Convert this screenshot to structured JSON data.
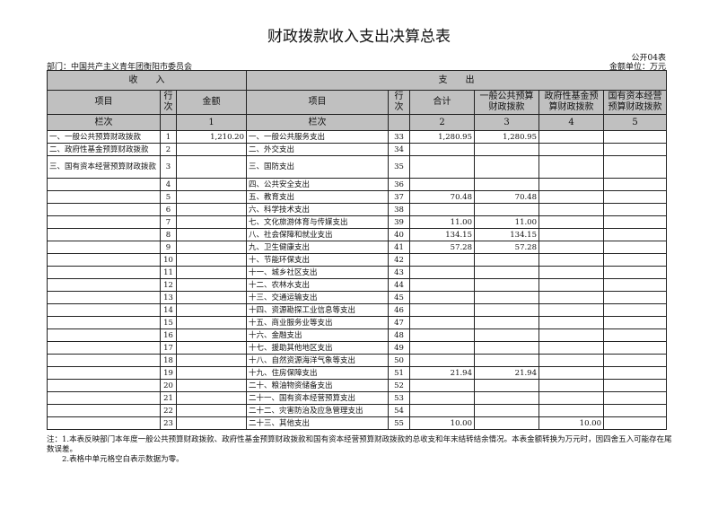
{
  "title": "财政拨款收入支出决算总表",
  "form_code": "公开04表",
  "department": "部门：中国共产主义青年团衡阳市委员会",
  "unit": "金额单位：万元",
  "headers": {
    "income": "收　　入",
    "expense": "支　　出",
    "item": "项目",
    "line": "行次",
    "amount": "金额",
    "total": "合计",
    "general": "一般公共预算财政拨款",
    "fund": "政府性基金预算财政拨款",
    "state": "国有资本经营预算财政拨款",
    "col_label": "栏次",
    "col1": "1",
    "col2": "2",
    "col3": "3",
    "col4": "4",
    "col5": "5"
  },
  "rows": [
    {
      "in_item": "一、一般公共预算财政拨款",
      "in_line": "1",
      "in_amount": "1,210.20",
      "ex_item": "一、一般公共服务支出",
      "ex_line": "33",
      "total": "1,280.95",
      "general": "1,280.95",
      "fund": "",
      "state": ""
    },
    {
      "in_item": "二、政府性基金预算财政拨款",
      "in_line": "2",
      "in_amount": "",
      "ex_item": "二、外交支出",
      "ex_line": "34",
      "total": "",
      "general": "",
      "fund": "",
      "state": ""
    },
    {
      "in_item": "三、国有资本经营预算财政拨款",
      "in_line": "3",
      "in_amount": "",
      "ex_item": "三、国防支出",
      "ex_line": "35",
      "total": "",
      "general": "",
      "fund": "",
      "state": ""
    },
    {
      "in_item": "",
      "in_line": "4",
      "in_amount": "",
      "ex_item": "四、公共安全支出",
      "ex_line": "36",
      "total": "",
      "general": "",
      "fund": "",
      "state": ""
    },
    {
      "in_item": "",
      "in_line": "5",
      "in_amount": "",
      "ex_item": "五、教育支出",
      "ex_line": "37",
      "total": "70.48",
      "general": "70.48",
      "fund": "",
      "state": ""
    },
    {
      "in_item": "",
      "in_line": "6",
      "in_amount": "",
      "ex_item": "六、科学技术支出",
      "ex_line": "38",
      "total": "",
      "general": "",
      "fund": "",
      "state": ""
    },
    {
      "in_item": "",
      "in_line": "7",
      "in_amount": "",
      "ex_item": "七、文化旅游体育与传媒支出",
      "ex_line": "39",
      "total": "11.00",
      "general": "11.00",
      "fund": "",
      "state": ""
    },
    {
      "in_item": "",
      "in_line": "8",
      "in_amount": "",
      "ex_item": "八、社会保障和就业支出",
      "ex_line": "40",
      "total": "134.15",
      "general": "134.15",
      "fund": "",
      "state": ""
    },
    {
      "in_item": "",
      "in_line": "9",
      "in_amount": "",
      "ex_item": "九、卫生健康支出",
      "ex_line": "41",
      "total": "57.28",
      "general": "57.28",
      "fund": "",
      "state": ""
    },
    {
      "in_item": "",
      "in_line": "10",
      "in_amount": "",
      "ex_item": "十、节能环保支出",
      "ex_line": "42",
      "total": "",
      "general": "",
      "fund": "",
      "state": ""
    },
    {
      "in_item": "",
      "in_line": "11",
      "in_amount": "",
      "ex_item": "十一、城乡社区支出",
      "ex_line": "43",
      "total": "",
      "general": "",
      "fund": "",
      "state": ""
    },
    {
      "in_item": "",
      "in_line": "12",
      "in_amount": "",
      "ex_item": "十二、农林水支出",
      "ex_line": "44",
      "total": "",
      "general": "",
      "fund": "",
      "state": ""
    },
    {
      "in_item": "",
      "in_line": "13",
      "in_amount": "",
      "ex_item": "十三、交通运输支出",
      "ex_line": "45",
      "total": "",
      "general": "",
      "fund": "",
      "state": ""
    },
    {
      "in_item": "",
      "in_line": "14",
      "in_amount": "",
      "ex_item": "十四、资源勘探工业信息等支出",
      "ex_line": "46",
      "total": "",
      "general": "",
      "fund": "",
      "state": ""
    },
    {
      "in_item": "",
      "in_line": "15",
      "in_amount": "",
      "ex_item": "十五、商业服务业等支出",
      "ex_line": "47",
      "total": "",
      "general": "",
      "fund": "",
      "state": ""
    },
    {
      "in_item": "",
      "in_line": "16",
      "in_amount": "",
      "ex_item": "十六、金融支出",
      "ex_line": "48",
      "total": "",
      "general": "",
      "fund": "",
      "state": ""
    },
    {
      "in_item": "",
      "in_line": "17",
      "in_amount": "",
      "ex_item": "十七、援助其他地区支出",
      "ex_line": "49",
      "total": "",
      "general": "",
      "fund": "",
      "state": ""
    },
    {
      "in_item": "",
      "in_line": "18",
      "in_amount": "",
      "ex_item": "十八、自然资源海洋气象等支出",
      "ex_line": "50",
      "total": "",
      "general": "",
      "fund": "",
      "state": ""
    },
    {
      "in_item": "",
      "in_line": "19",
      "in_amount": "",
      "ex_item": "十九、住房保障支出",
      "ex_line": "51",
      "total": "21.94",
      "general": "21.94",
      "fund": "",
      "state": ""
    },
    {
      "in_item": "",
      "in_line": "20",
      "in_amount": "",
      "ex_item": "二十、粮油物资储备支出",
      "ex_line": "52",
      "total": "",
      "general": "",
      "fund": "",
      "state": ""
    },
    {
      "in_item": "",
      "in_line": "21",
      "in_amount": "",
      "ex_item": "二十一、国有资本经营预算支出",
      "ex_line": "53",
      "total": "",
      "general": "",
      "fund": "",
      "state": ""
    },
    {
      "in_item": "",
      "in_line": "22",
      "in_amount": "",
      "ex_item": "二十二、灾害防治及应急管理支出",
      "ex_line": "54",
      "total": "",
      "general": "",
      "fund": "",
      "state": ""
    },
    {
      "in_item": "",
      "in_line": "23",
      "in_amount": "",
      "ex_item": "二十三、其他支出",
      "ex_line": "55",
      "total": "10.00",
      "general": "",
      "fund": "10.00",
      "state": ""
    }
  ],
  "notes": [
    "注：1.本表反映部门本年度一般公共预算财政拨款、政府性基金预算财政拨款和国有资本经营预算财政拨款的总收支和年末结转结余情况。本表金额转换为万元时，因四舍五入可能存在尾数误差。",
    "2.表格中单元格空白表示数据为零。"
  ]
}
